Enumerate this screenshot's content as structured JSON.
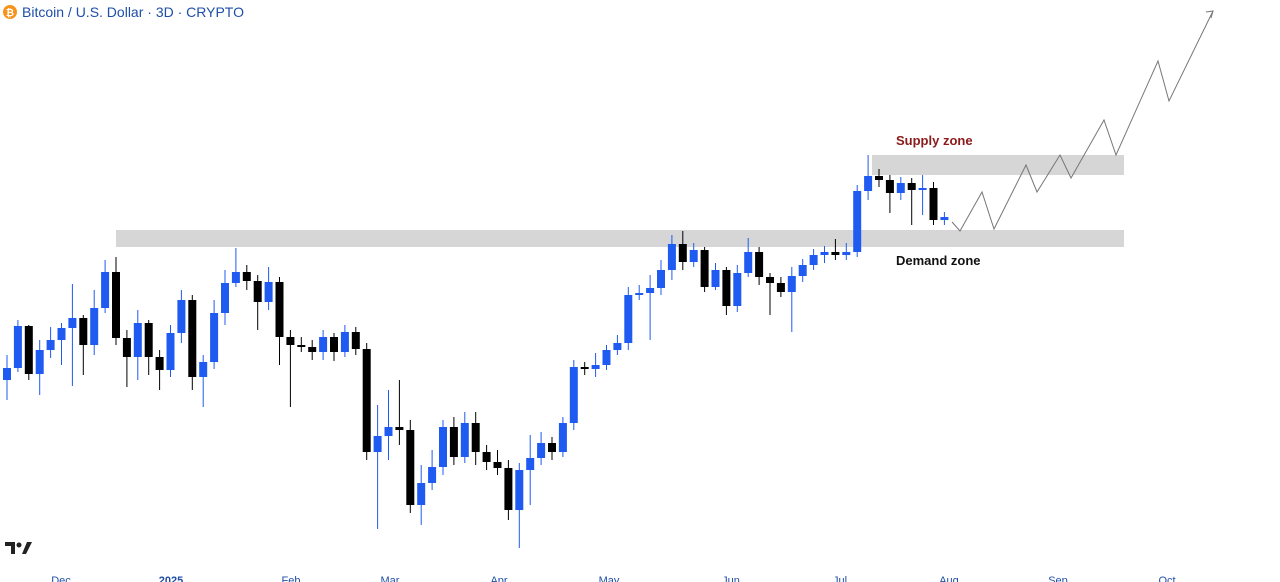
{
  "chart_data": {
    "type": "candlestick",
    "title": "Bitcoin / U.S. Dollar · 3D · CRYPTO",
    "x_labels": [
      "Dec",
      "2025",
      "Feb",
      "Mar",
      "Apr",
      "May",
      "Jun",
      "Jul",
      "Aug",
      "Sep",
      "Oct"
    ],
    "annotations": [
      "Supply zone",
      "Demand zone"
    ],
    "up_color": "#1f5bf0",
    "down_color": "#000000",
    "ylim": [
      75000,
      125000
    ],
    "open": [
      92500,
      93700,
      97900,
      93100,
      95500,
      96500,
      97700,
      98700,
      96000,
      99700,
      103300,
      96700,
      94800,
      98200,
      94800,
      93500,
      97200,
      100500,
      92800,
      94300,
      99200,
      102200,
      103300,
      102400,
      100300,
      102300,
      96800,
      96000,
      95800,
      95300,
      96800,
      95300,
      97300,
      95600,
      85300,
      86900,
      87800,
      87500,
      80000,
      82200,
      83800,
      87800,
      84800,
      88200,
      85300,
      84300,
      83700,
      79500,
      83500,
      84700,
      86200,
      85300,
      88200,
      93800,
      93600,
      94000,
      95500,
      96200,
      101000,
      101200,
      101700,
      103500,
      106100,
      104300,
      105500,
      101800,
      103500,
      99900,
      103200,
      105300,
      102800,
      102200,
      101300,
      102900,
      104000,
      105000,
      105300,
      105000,
      105300,
      111400,
      112900,
      112500,
      111200,
      112200,
      111500,
      111700,
      108500
    ],
    "high": [
      95000,
      98500,
      98000,
      96500,
      97800,
      98200,
      102100,
      99000,
      101500,
      104500,
      104800,
      97500,
      99500,
      98500,
      95500,
      98000,
      101500,
      101000,
      95000,
      100500,
      103500,
      105700,
      104000,
      103000,
      103800,
      102800,
      97500,
      96800,
      96500,
      97500,
      97200,
      98000,
      97800,
      96200,
      90000,
      91500,
      92500,
      88500,
      84000,
      85500,
      88500,
      88800,
      89300,
      89300,
      86000,
      85500,
      84500,
      84200,
      87000,
      87300,
      86800,
      88800,
      94500,
      94300,
      95200,
      96000,
      97000,
      101800,
      102000,
      103000,
      104500,
      107000,
      107400,
      106200,
      105800,
      104200,
      103800,
      104000,
      106700,
      105800,
      103200,
      102800,
      103800,
      104600,
      105600,
      105900,
      106600,
      106200,
      112000,
      115000,
      113600,
      113000,
      112800,
      112700,
      113000,
      112300,
      109300
    ],
    "low": [
      90500,
      93300,
      92500,
      91000,
      94700,
      94000,
      91900,
      93000,
      95000,
      99200,
      96000,
      91800,
      92500,
      93000,
      91500,
      92800,
      96200,
      91500,
      89800,
      93600,
      98000,
      101800,
      101500,
      97500,
      99500,
      94000,
      89800,
      95300,
      94500,
      94500,
      94400,
      94800,
      95000,
      84500,
      77600,
      84500,
      86000,
      79200,
      78000,
      81500,
      83000,
      84000,
      84200,
      84000,
      83500,
      83000,
      78500,
      75700,
      80000,
      84000,
      84500,
      84800,
      87500,
      93000,
      92800,
      93500,
      95000,
      95500,
      100500,
      96500,
      101000,
      102500,
      103500,
      103800,
      101300,
      101500,
      99000,
      99300,
      102800,
      102000,
      99000,
      100800,
      97300,
      102300,
      103500,
      104200,
      104500,
      104500,
      104800,
      110500,
      111800,
      109200,
      110500,
      108000,
      109000,
      108000,
      108000
    ],
    "close": [
      93700,
      97900,
      93100,
      95500,
      96500,
      97700,
      98700,
      96000,
      99700,
      103300,
      96700,
      94800,
      98200,
      94800,
      93500,
      97200,
      100500,
      92800,
      94300,
      99200,
      102200,
      103300,
      102400,
      100300,
      102300,
      96800,
      96000,
      95800,
      95300,
      96800,
      95300,
      97300,
      95600,
      85300,
      86900,
      87800,
      87500,
      80000,
      82200,
      83800,
      87800,
      84800,
      88200,
      85300,
      84300,
      83700,
      79500,
      83500,
      84700,
      86200,
      85300,
      88200,
      93800,
      93600,
      94000,
      95500,
      96200,
      101000,
      101200,
      101700,
      103500,
      106100,
      104300,
      105500,
      101800,
      103500,
      99900,
      103200,
      105300,
      102800,
      102200,
      101300,
      102900,
      104000,
      105000,
      105300,
      105000,
      105300,
      111400,
      112900,
      112500,
      111200,
      112200,
      111500,
      111700,
      108500,
      108800
    ]
  }
}
